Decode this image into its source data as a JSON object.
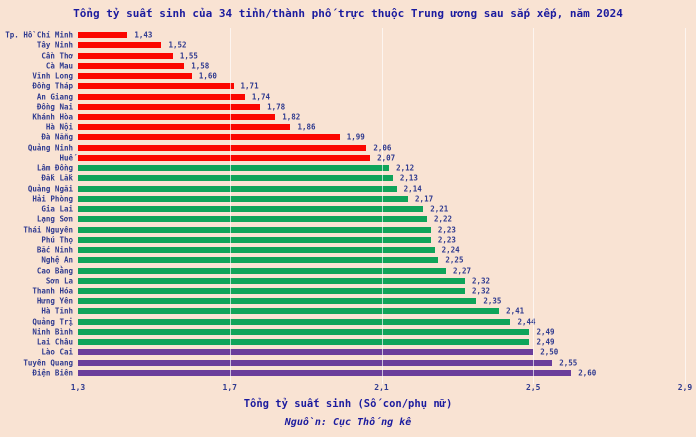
{
  "title": "Tổng tỷ suất sinh của 34 tỉnh/thành phố trực thuộc Trung ương sau sắp xếp, năm 2024",
  "xlabel": "Tổng tỷ suất sinh (Số con/phụ nữ)",
  "source": "Nguồn: Cục Thống kê",
  "colors": {
    "background": "#F9E3D3",
    "title_text": "#1B1B9E",
    "label_text": "#2F3A8F",
    "red": "#FB0600",
    "green": "#0FA45A",
    "purple": "#6B3E9B",
    "gridline": "rgba(255,255,255,0.65)"
  },
  "chart_data": {
    "type": "bar",
    "orientation": "horizontal",
    "title": "Tổng tỷ suất sinh của 34 tỉnh/thành phố trực thuộc Trung ương sau sắp xếp, năm 2024",
    "xlabel": "Tổng tỷ suất sinh (Số con/phụ nữ)",
    "source": "Nguồn: Cục Thống kê",
    "xlim": [
      1.3,
      2.9
    ],
    "grid": "vertical",
    "x_ticks": [
      {
        "value": 1.3,
        "label": "1,3",
        "gridline": false
      },
      {
        "value": 1.7,
        "label": "1,7",
        "gridline": true
      },
      {
        "value": 2.1,
        "label": "2,1",
        "gridline": true
      },
      {
        "value": 2.5,
        "label": "2,5",
        "gridline": true
      },
      {
        "value": 2.9,
        "label": "2,9",
        "gridline": true
      }
    ],
    "categories": [
      "Tp. Hồ Chí Minh",
      "Tây Ninh",
      "Cần Thơ",
      "Cà Mau",
      "Vĩnh Long",
      "Đồng Tháp",
      "An Giang",
      "Đồng Nai",
      "Khánh Hòa",
      "Hà Nội",
      "Đà Nẵng",
      "Quảng Ninh",
      "Huế",
      "Lâm Đồng",
      "Đắk Lắk",
      "Quảng Ngãi",
      "Hải Phòng",
      "Gia Lai",
      "Lạng Sơn",
      "Thái Nguyên",
      "Phú Thọ",
      "Bắc Ninh",
      "Nghệ An",
      "Cao Bằng",
      "Sơn La",
      "Thanh Hóa",
      "Hưng Yên",
      "Hà Tĩnh",
      "Quảng Trị",
      "Ninh Bình",
      "Lai Châu",
      "Lào Cai",
      "Tuyên Quang",
      "Điện Biên"
    ],
    "values": [
      1.43,
      1.52,
      1.55,
      1.58,
      1.6,
      1.71,
      1.74,
      1.78,
      1.82,
      1.86,
      1.99,
      2.06,
      2.07,
      2.12,
      2.13,
      2.14,
      2.17,
      2.21,
      2.22,
      2.23,
      2.23,
      2.24,
      2.25,
      2.27,
      2.32,
      2.32,
      2.35,
      2.41,
      2.44,
      2.49,
      2.49,
      2.5,
      2.55,
      2.6
    ],
    "value_labels": [
      "1,43",
      "1,52",
      "1,55",
      "1,58",
      "1,60",
      "1,71",
      "1,74",
      "1,78",
      "1,82",
      "1,86",
      "1,99",
      "2,06",
      "2,07",
      "2,12",
      "2,13",
      "2,14",
      "2,17",
      "2,21",
      "2,22",
      "2,23",
      "2,23",
      "2,24",
      "2,25",
      "2,27",
      "2,32",
      "2,32",
      "2,35",
      "2,41",
      "2,44",
      "2,49",
      "2,49",
      "2,50",
      "2,55",
      "2,60"
    ],
    "bar_color_groups": [
      "red",
      "red",
      "red",
      "red",
      "red",
      "red",
      "red",
      "red",
      "red",
      "red",
      "red",
      "red",
      "red",
      "green",
      "green",
      "green",
      "green",
      "green",
      "green",
      "green",
      "green",
      "green",
      "green",
      "green",
      "green",
      "green",
      "green",
      "green",
      "green",
      "green",
      "green",
      "purple",
      "purple",
      "purple"
    ]
  }
}
